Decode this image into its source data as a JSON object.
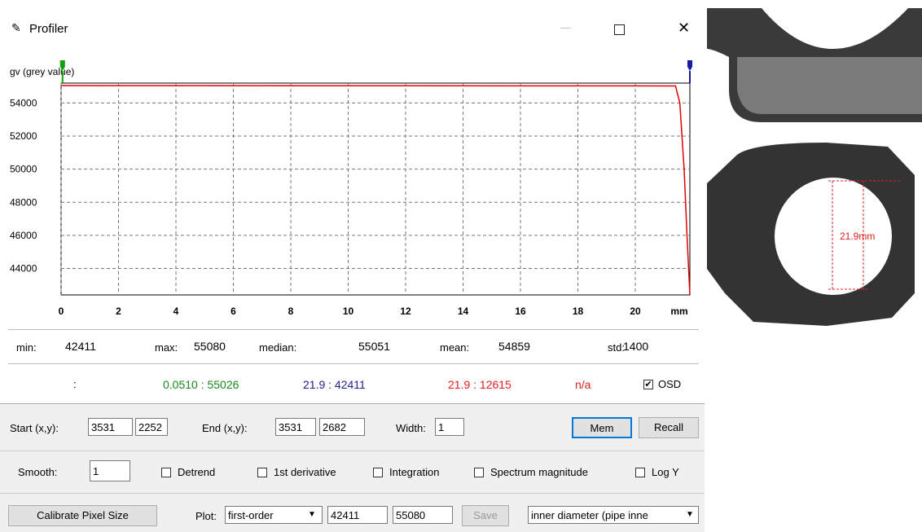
{
  "window": {
    "title": "Profiler"
  },
  "chart_data": {
    "type": "line",
    "y_label": "gv (grey value)",
    "x_unit": "mm",
    "xlim": [
      0,
      21.9
    ],
    "xticks": [
      0,
      2,
      4,
      6,
      8,
      10,
      12,
      14,
      16,
      18,
      20
    ],
    "ylim": [
      42400,
      55200
    ],
    "yticks": [
      44000,
      46000,
      48000,
      50000,
      52000,
      54000
    ],
    "grid": true,
    "series": [
      {
        "color": "#e00000",
        "x": [
          0,
          21.4,
          21.55,
          21.7,
          21.8,
          21.9
        ],
        "values": [
          55050,
          55030,
          54000,
          50000,
          46000,
          42411
        ]
      }
    ],
    "cursors": [
      {
        "x": 0.051,
        "color": "#10a010"
      },
      {
        "x": 21.9,
        "color": "#1a1aa0"
      }
    ]
  },
  "stats": [
    {
      "label": "min:",
      "value": 42411
    },
    {
      "label": "max:",
      "value": 55080
    },
    {
      "label": "median:",
      "value": 55051
    },
    {
      "label": "mean:",
      "value": 54859
    },
    {
      "label": "std:",
      "value": 1400
    }
  ],
  "readout": {
    "prefix": ":",
    "items": [
      {
        "text": "0.0510 : 55026",
        "color": "#1a8a1a"
      },
      {
        "text": "21.9 : 42411",
        "color": "#202090"
      },
      {
        "text": "21.9 : 12615",
        "color": "#e02020"
      },
      {
        "text": "n/a",
        "color": "#e02020"
      }
    ],
    "osd": {
      "label": "OSD",
      "checked": true
    }
  },
  "controls": {
    "start_label": "Start (x,y):",
    "start_x": 3531,
    "start_y": 2252,
    "end_label": "End (x,y):",
    "end_x": 3531,
    "end_y": 2682,
    "width_label": "Width:",
    "width": 1,
    "mem": "Mem",
    "recall": "Recall",
    "smooth_label": "Smooth:",
    "smooth": 1,
    "options": [
      {
        "label": "Detrend",
        "checked": false
      },
      {
        "label": "1st derivative",
        "checked": false
      },
      {
        "label": "Integration",
        "checked": false
      },
      {
        "label": "Spectrum magnitude",
        "checked": false
      },
      {
        "label": "Log Y",
        "checked": false
      }
    ],
    "calibrate": "Calibrate Pixel Size",
    "plot_label": "Plot:",
    "plot_mode": "first-order",
    "plot_min": 42411,
    "plot_max": 55080,
    "save": "Save",
    "preset": "inner diameter (pipe inne"
  },
  "image": {
    "measurement": "21.9mm"
  }
}
